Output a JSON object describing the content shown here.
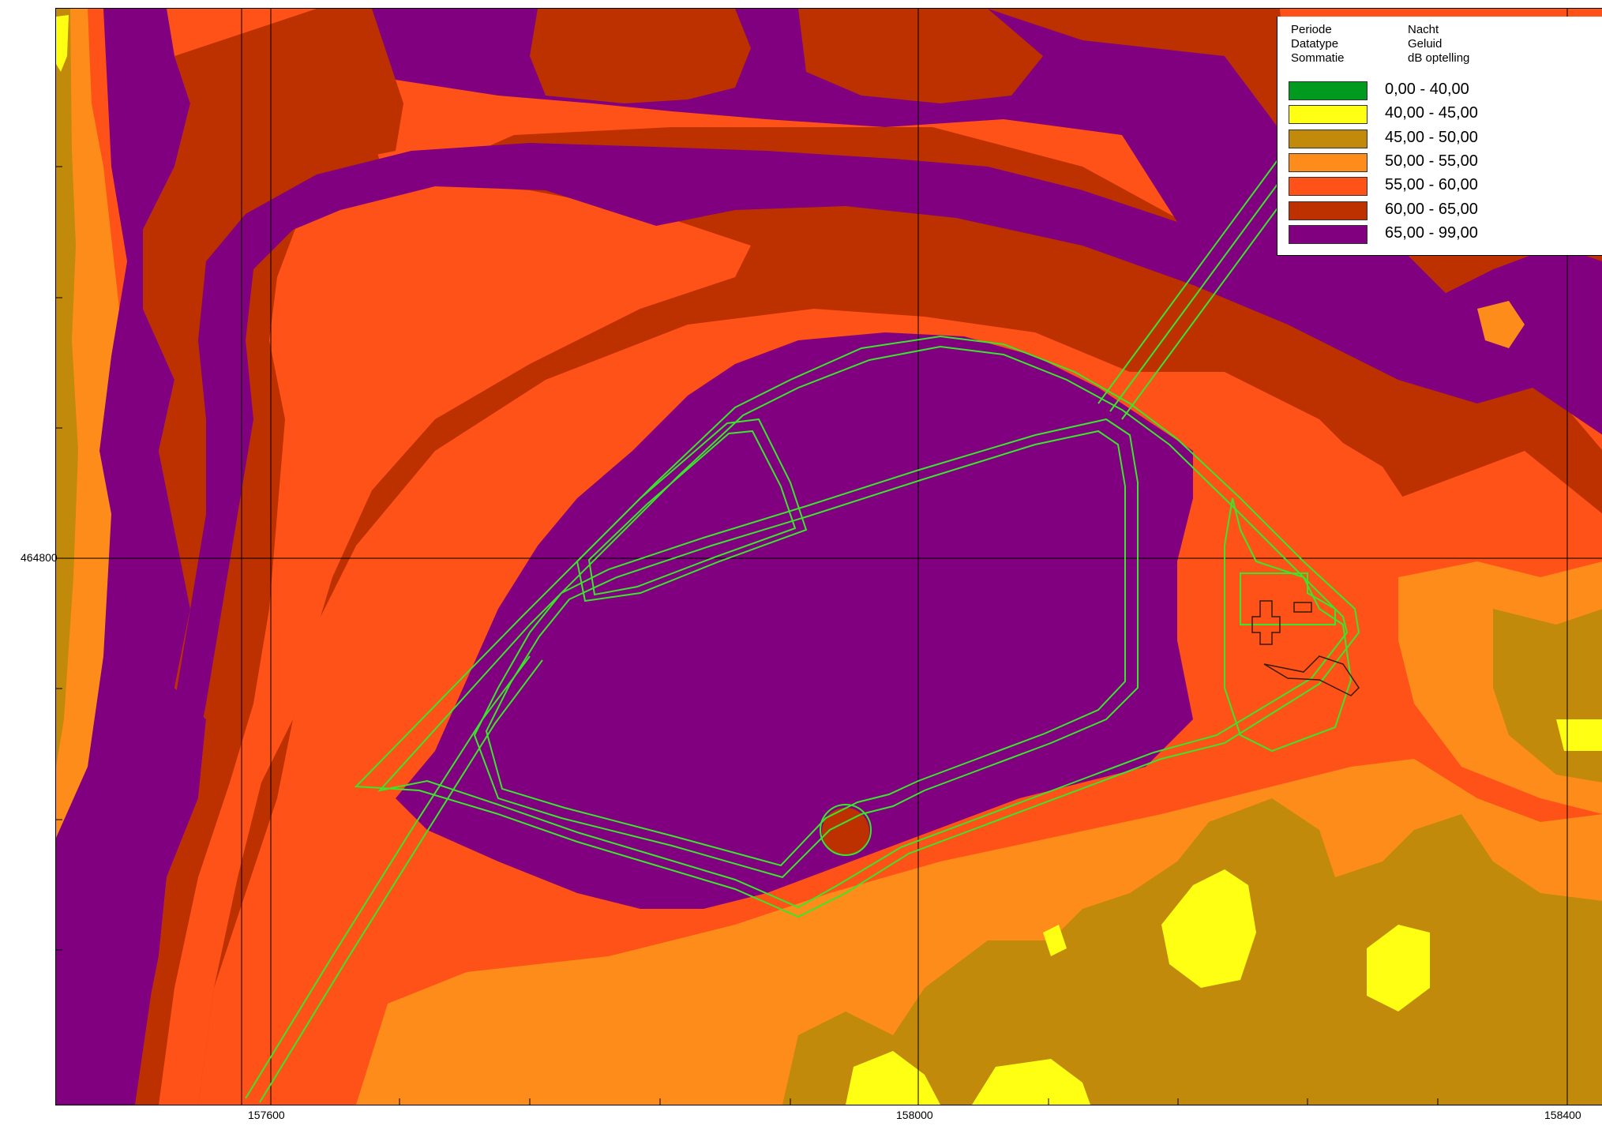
{
  "legend": {
    "meta": [
      {
        "key": "Periode",
        "value": "Nacht"
      },
      {
        "key": "Datatype",
        "value": "Geluid"
      },
      {
        "key": "Sommatie",
        "value": "dB optelling"
      }
    ],
    "classes": [
      {
        "label": "0,00 - 40,00",
        "color": "#009a1e"
      },
      {
        "label": "40,00 - 45,00",
        "color": "#ffff14"
      },
      {
        "label": "45,00 - 50,00",
        "color": "#c28a0b"
      },
      {
        "label": "50,00 - 55,00",
        "color": "#fe8c1a"
      },
      {
        "label": "55,00 - 60,00",
        "color": "#ff5218"
      },
      {
        "label": "60,00 - 65,00",
        "color": "#bd3100"
      },
      {
        "label": "65,00 - 99,00",
        "color": "#800080"
      }
    ]
  },
  "axes": {
    "x_labels": [
      "157600",
      "158000",
      "158400"
    ],
    "y_labels": [
      "464800"
    ]
  },
  "overlay_color": "#39e62b",
  "footer": ""
}
